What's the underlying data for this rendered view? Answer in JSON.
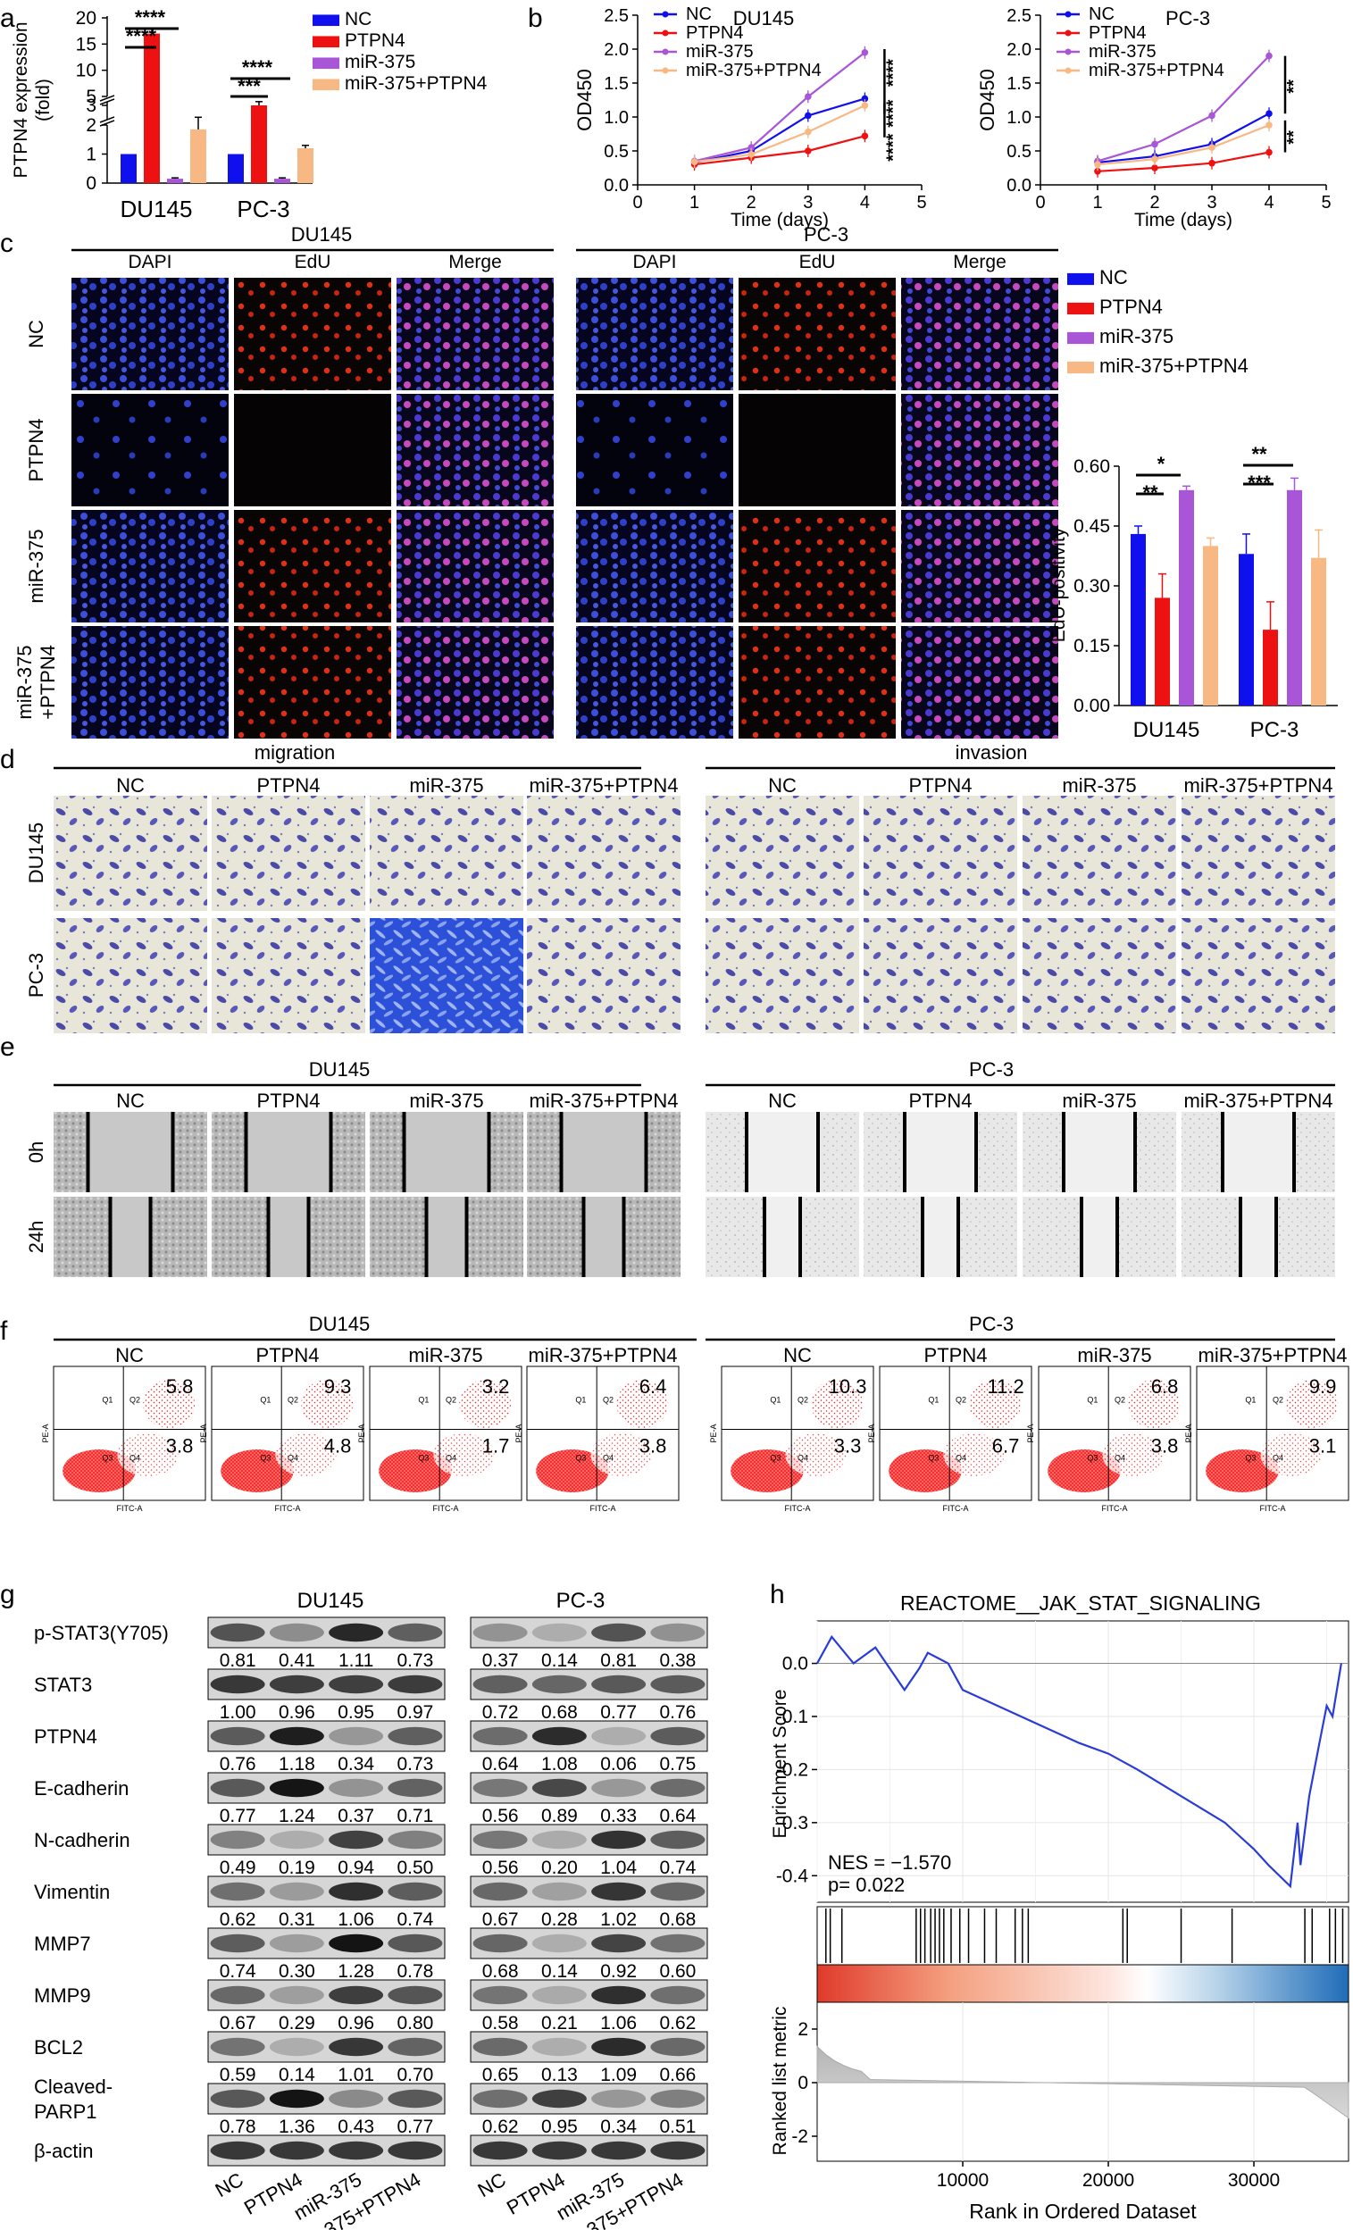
{
  "colors": {
    "NC": "#1010ee",
    "PTPN4": "#ee1111",
    "miR375": "#a855d8",
    "combo": "#f8b884",
    "gsea_line": "#2a3cd8"
  },
  "panel_labels": [
    "a",
    "b",
    "c",
    "d",
    "e",
    "f",
    "g",
    "h"
  ],
  "groups": [
    "NC",
    "PTPN4",
    "miR-375",
    "miR-375+PTPN4"
  ],
  "panel_c": {
    "cell_lines": [
      "DU145",
      "PC-3"
    ],
    "channels": [
      "DAPI",
      "EdU",
      "Merge"
    ],
    "row_labels": [
      "NC",
      "PTPN4",
      "miR-375",
      "miR-375\n+PTPN4"
    ],
    "row_label_lines": [
      [
        "NC"
      ],
      [
        "PTPN4"
      ],
      [
        "miR-375"
      ],
      [
        "miR-375",
        "+PTPN4"
      ]
    ]
  },
  "panel_d": {
    "sections": [
      "migration",
      "invasion"
    ],
    "row_labels": [
      "DU145",
      "PC-3"
    ]
  },
  "panel_e": {
    "cell_lines": [
      "DU145",
      "PC-3"
    ],
    "row_labels": [
      "0h",
      "24h"
    ]
  },
  "panel_f": {
    "cell_lines": [
      "DU145",
      "PC-3"
    ],
    "axis_x": "FITC-A",
    "axis_y": "PE-A",
    "quadrants": [
      "Q1",
      "Q2",
      "Q3",
      "Q4"
    ],
    "DU145": {
      "upper": [
        "5.8",
        "9.3",
        "3.2",
        "6.4"
      ],
      "lower": [
        "3.8",
        "4.8",
        "1.7",
        "3.8"
      ]
    },
    "PC3": {
      "upper": [
        "10.3",
        "11.2",
        "6.8",
        "9.9"
      ],
      "lower": [
        "3.3",
        "6.7",
        "3.8",
        "3.1"
      ]
    }
  },
  "panel_g": {
    "cell_lines": [
      "DU145",
      "PC-3"
    ],
    "lane_labels": [
      "NC",
      "PTPN4",
      "miR-375",
      "miR-375+PTPN4"
    ],
    "proteins": [
      {
        "name": "p-STAT3(Y705)",
        "du145": [
          "0.81",
          "0.41",
          "1.11",
          "0.73"
        ],
        "pc3": [
          "0.37",
          "0.14",
          "0.81",
          "0.38"
        ]
      },
      {
        "name": "STAT3",
        "du145": [
          "1.00",
          "0.96",
          "0.95",
          "0.97"
        ],
        "pc3": [
          "0.72",
          "0.68",
          "0.77",
          "0.76"
        ]
      },
      {
        "name": "PTPN4",
        "du145": [
          "0.76",
          "1.18",
          "0.34",
          "0.73"
        ],
        "pc3": [
          "0.64",
          "1.08",
          "0.06",
          "0.75"
        ]
      },
      {
        "name": "E-cadherin",
        "du145": [
          "0.77",
          "1.24",
          "0.37",
          "0.71"
        ],
        "pc3": [
          "0.56",
          "0.89",
          "0.33",
          "0.64"
        ]
      },
      {
        "name": "N-cadherin",
        "du145": [
          "0.49",
          "0.19",
          "0.94",
          "0.50"
        ],
        "pc3": [
          "0.56",
          "0.20",
          "1.04",
          "0.74"
        ]
      },
      {
        "name": "Vimentin",
        "du145": [
          "0.62",
          "0.31",
          "1.06",
          "0.74"
        ],
        "pc3": [
          "0.67",
          "0.28",
          "1.02",
          "0.68"
        ]
      },
      {
        "name": "MMP7",
        "du145": [
          "0.74",
          "0.30",
          "1.28",
          "0.78"
        ],
        "pc3": [
          "0.68",
          "0.14",
          "0.92",
          "0.60"
        ]
      },
      {
        "name": "MMP9",
        "du145": [
          "0.67",
          "0.29",
          "0.96",
          "0.80"
        ],
        "pc3": [
          "0.58",
          "0.21",
          "1.06",
          "0.62"
        ]
      },
      {
        "name": "BCL2",
        "du145": [
          "0.59",
          "0.14",
          "1.01",
          "0.70"
        ],
        "pc3": [
          "0.65",
          "0.13",
          "1.09",
          "0.66"
        ]
      },
      {
        "name": "Cleaved-PARP1",
        "name_lines": [
          "Cleaved-",
          "PARP1"
        ],
        "du145": [
          "0.78",
          "1.36",
          "0.43",
          "0.77"
        ],
        "pc3": [
          "0.62",
          "0.95",
          "0.34",
          "0.51"
        ]
      },
      {
        "name": "β-actin",
        "du145": null,
        "pc3": null
      }
    ]
  },
  "chart_data": [
    {
      "id": "a",
      "type": "bar",
      "categories": [
        "DU145",
        "PC-3"
      ],
      "series": [
        {
          "name": "NC",
          "values": [
            1.0,
            1.0
          ],
          "errors": [
            0,
            0
          ]
        },
        {
          "name": "PTPN4",
          "values": [
            17,
            3.0
          ],
          "errors": [
            1.0,
            0.3
          ]
        },
        {
          "name": "miR-375",
          "values": [
            0.15,
            0.15
          ],
          "errors": [
            0.03,
            0.03
          ]
        },
        {
          "name": "miR-375+PTPN4",
          "values": [
            1.85,
            1.2
          ],
          "errors": [
            0.2,
            0.1
          ]
        }
      ],
      "ylabel": "PTPN4 expression (fold)",
      "ylabel_lines": [
        "PTPN4 expression",
        "(fold)"
      ],
      "yticks": [
        "0",
        "1",
        "2",
        "3",
        "5",
        "10",
        "15",
        "20"
      ],
      "significance": [
        "****",
        "****",
        "****",
        "***"
      ],
      "legend": [
        "NC",
        "PTPN4",
        "miR-375",
        "miR-375+PTPN4"
      ]
    },
    {
      "id": "b1",
      "type": "line",
      "title": "DU145",
      "x": [
        1,
        2,
        3,
        4
      ],
      "series": [
        {
          "name": "NC",
          "values": [
            0.33,
            0.5,
            1.02,
            1.27
          ]
        },
        {
          "name": "PTPN4",
          "values": [
            0.3,
            0.4,
            0.5,
            0.72
          ]
        },
        {
          "name": "miR-375",
          "values": [
            0.35,
            0.55,
            1.3,
            1.95
          ]
        },
        {
          "name": "miR-375+PTPN4",
          "values": [
            0.34,
            0.45,
            0.78,
            1.17
          ]
        }
      ],
      "xlabel": "Time (days)",
      "ylabel": "OD450",
      "xlim": [
        0,
        5
      ],
      "ylim": [
        0,
        2.5
      ],
      "xticks": [
        "0",
        "1",
        "2",
        "3",
        "4",
        "5"
      ],
      "yticks": [
        "0.0",
        "0.5",
        "1.0",
        "1.5",
        "2.0",
        "2.5"
      ],
      "significance": [
        "****",
        "****",
        "****"
      ],
      "legend": [
        "NC",
        "PTPN4",
        "miR-375",
        "miR-375+PTPN4"
      ]
    },
    {
      "id": "b2",
      "type": "line",
      "title": "PC-3",
      "x": [
        1,
        2,
        3,
        4
      ],
      "series": [
        {
          "name": "NC",
          "values": [
            0.33,
            0.42,
            0.6,
            1.05
          ]
        },
        {
          "name": "PTPN4",
          "values": [
            0.2,
            0.25,
            0.32,
            0.48
          ]
        },
        {
          "name": "miR-375",
          "values": [
            0.35,
            0.6,
            1.02,
            1.9
          ]
        },
        {
          "name": "miR-375+PTPN4",
          "values": [
            0.3,
            0.38,
            0.55,
            0.88
          ]
        }
      ],
      "xlabel": "Time (days)",
      "ylabel": "OD450",
      "xlim": [
        0,
        5
      ],
      "ylim": [
        0,
        2.5
      ],
      "xticks": [
        "0",
        "1",
        "2",
        "3",
        "4",
        "5"
      ],
      "yticks": [
        "0.0",
        "0.5",
        "1.0",
        "1.5",
        "2.0",
        "2.5"
      ],
      "significance": [
        "**",
        "**"
      ],
      "legend": [
        "NC",
        "PTPN4",
        "miR-375",
        "miR-375+PTPN4"
      ]
    },
    {
      "id": "c",
      "type": "bar",
      "categories": [
        "DU145",
        "PC-3"
      ],
      "series": [
        {
          "name": "NC",
          "values": [
            0.43,
            0.38
          ],
          "errors": [
            0.02,
            0.05
          ]
        },
        {
          "name": "PTPN4",
          "values": [
            0.27,
            0.19
          ],
          "errors": [
            0.06,
            0.07
          ]
        },
        {
          "name": "miR-375",
          "values": [
            0.54,
            0.54
          ],
          "errors": [
            0.01,
            0.03
          ]
        },
        {
          "name": "miR-375+PTPN4",
          "values": [
            0.4,
            0.37
          ],
          "errors": [
            0.02,
            0.07
          ]
        }
      ],
      "ylabel": "EdU-positivity",
      "ylim": [
        0,
        0.6
      ],
      "yticks": [
        "0.00",
        "0.15",
        "0.30",
        "0.45",
        "0.60"
      ],
      "significance": [
        "*",
        "**",
        "**",
        "***"
      ],
      "legend": [
        "NC",
        "PTPN4",
        "miR-375",
        "miR-375+PTPN4"
      ]
    },
    {
      "id": "h",
      "type": "line",
      "title": "REACTOME__JAK_STAT_SIGNALING",
      "x": [
        0,
        1000,
        2500,
        4000,
        6000,
        7000,
        7600,
        8300,
        9000,
        10000,
        14000,
        18000,
        20000,
        22000,
        25000,
        28000,
        30000,
        31000,
        32500,
        33000,
        33200,
        33800,
        34500,
        35000,
        35400,
        36000
      ],
      "values": [
        0.0,
        0.05,
        0.0,
        0.03,
        -0.05,
        -0.01,
        0.02,
        0.01,
        0.0,
        -0.05,
        -0.1,
        -0.15,
        -0.17,
        -0.2,
        -0.25,
        -0.3,
        -0.35,
        -0.38,
        -0.42,
        -0.3,
        -0.38,
        -0.25,
        -0.15,
        -0.08,
        -0.1,
        0.0
      ],
      "ylabel": "Enrichment Score",
      "yticks": [
        "0.0",
        "-0.1",
        "-0.2",
        "-0.3",
        "-0.4"
      ],
      "annotations": [
        "NES = −1.570",
        "p= 0.022"
      ],
      "ranked_ylabel": "Ranked list metric",
      "ranked_yticks": [
        "2",
        "0",
        "-2"
      ],
      "xlabel": "Rank in Ordered Dataset",
      "xticks": [
        "10000",
        "20000",
        "30000"
      ]
    }
  ]
}
